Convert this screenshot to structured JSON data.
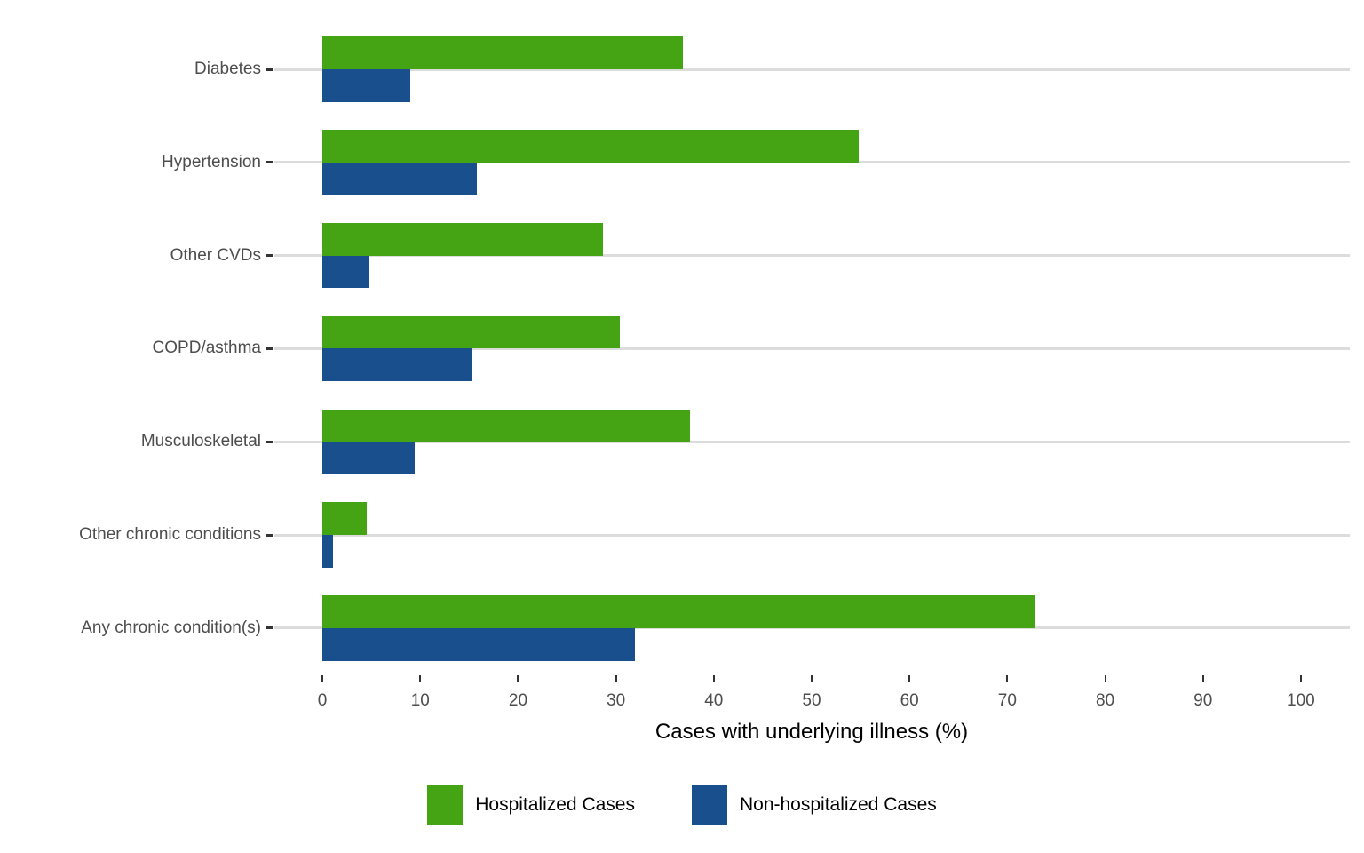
{
  "chart_data": {
    "type": "bar",
    "orientation": "horizontal",
    "title": "",
    "xlabel": "Cases with underlying illness (%)",
    "ylabel": "",
    "xlim": [
      -5,
      105
    ],
    "x_ticks": [
      0,
      10,
      20,
      30,
      40,
      50,
      60,
      70,
      80,
      90,
      100
    ],
    "grid": "horizontal-major-only",
    "legend_position": "bottom",
    "categories": [
      "Diabetes",
      "Hypertension",
      "Other CVDs",
      "COPD/asthma",
      "Musculoskeletal",
      "Other chronic conditions",
      "Any chronic condition(s)"
    ],
    "series": [
      {
        "name": "Hospitalized Cases",
        "color": "#44A414",
        "values": [
          36.8,
          54.8,
          28.7,
          30.4,
          37.6,
          4.5,
          72.9
        ]
      },
      {
        "name": "Non-hospitalized Cases",
        "color": "#1A4F8D",
        "values": [
          9.0,
          15.8,
          4.8,
          15.2,
          9.4,
          1.1,
          31.9
        ]
      }
    ]
  },
  "colors": {
    "background": "#FFFFFF",
    "gridline": "#DCDCDC",
    "axis_text": "#4D4D4D",
    "tick_mark": "#333333",
    "hospitalized_green": "#44A414",
    "non_hospitalized_blue": "#1A4F8D"
  }
}
